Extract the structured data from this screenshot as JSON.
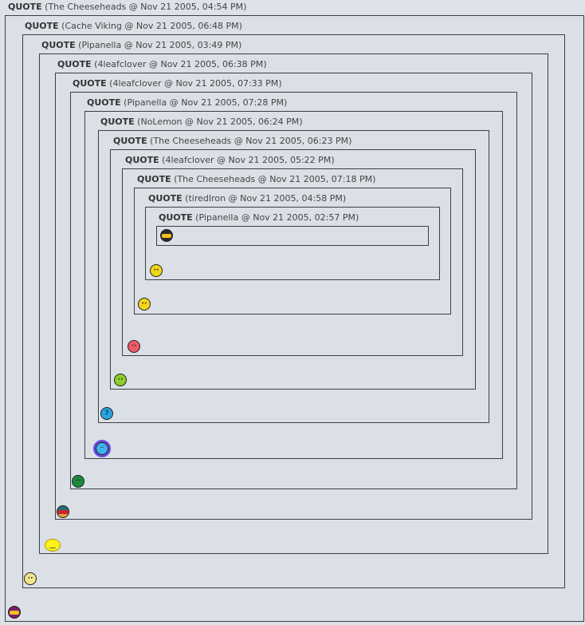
{
  "quote_label": "QUOTE",
  "quotes": [
    {
      "author": "The Cheeseheads",
      "date": "Nov 21 2005, 04:54 PM",
      "emoticon": "ninja-purple-icon",
      "color": "#7b1c6e"
    },
    {
      "author": "Cache Viking",
      "date": "Nov 21 2005, 06:48 PM",
      "emoticon": "viking-icon",
      "color": "#f3e38a"
    },
    {
      "author": "Pipanella",
      "date": "Nov 21 2005, 03:49 PM",
      "emoticon": "cheer-icon",
      "color": "#fff21a"
    },
    {
      "author": "4leafclover",
      "date": "Nov 21 2005, 06:38 PM",
      "emoticon": "german-flag-face-icon",
      "color": "#c8282a"
    },
    {
      "author": "4leafclover",
      "date": "Nov 21 2005, 07:33 PM",
      "emoticon": "green-smile-icon",
      "color": "#1a8a3e"
    },
    {
      "author": "Pipanella",
      "date": "Nov 21 2005, 07:28 PM",
      "emoticon": "flower-smile-icon",
      "color": "#3fb4ee"
    },
    {
      "author": "NoLemon",
      "date": "Nov 21 2005, 06:24 PM",
      "emoticon": "question-icon",
      "color": "#2aa3dc"
    },
    {
      "author": "The Cheeseheads",
      "date": "Nov 21 2005, 06:23 PM",
      "emoticon": "sick-icon",
      "color": "#8ccf2a"
    },
    {
      "author": "4leafclover",
      "date": "Nov 21 2005, 05:22 PM",
      "emoticon": "love-icon",
      "color": "#ef5a6a"
    },
    {
      "author": "The Cheeseheads",
      "date": "Nov 21 2005, 07:18 PM",
      "emoticon": "neutral-icon",
      "color": "#f3d51a"
    },
    {
      "author": "tiredIron",
      "date": "Nov 21 2005, 04:58 PM",
      "emoticon": "hmm-icon",
      "color": "#f3d51a"
    },
    {
      "author": "Pipanella",
      "date": "Nov 21 2005, 02:57 PM",
      "emoticon": "ninja-black-icon",
      "color": "#2a2a2a"
    }
  ]
}
